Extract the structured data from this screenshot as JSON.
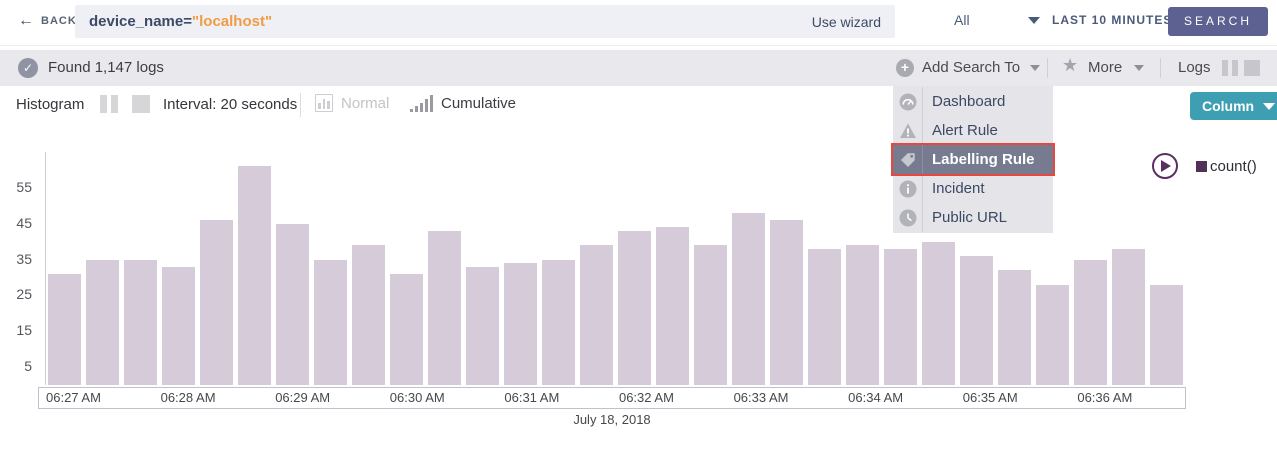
{
  "topbar": {
    "back_label": "BACK",
    "query_field": "device_name=",
    "query_value": "\"localhost\"",
    "use_wizard_label": "Use wizard",
    "scope_selected": "All",
    "time_range": "LAST 10 MINUTES",
    "search_label": "SEARCH"
  },
  "statusbar": {
    "found_text": "Found 1,147 logs",
    "add_search_to_label": "Add Search To",
    "more_label": "More",
    "logs_label": "Logs"
  },
  "menu": {
    "items": [
      {
        "label": "Dashboard",
        "icon": "dashboard-icon",
        "selected": false
      },
      {
        "label": "Alert Rule",
        "icon": "alert-triangle-icon",
        "selected": false
      },
      {
        "label": "Labelling Rule",
        "icon": "tag-icon",
        "selected": true
      },
      {
        "label": "Incident",
        "icon": "info-icon",
        "selected": false
      },
      {
        "label": "Public URL",
        "icon": "public-url-icon",
        "selected": false
      }
    ]
  },
  "controls": {
    "histogram_label": "Histogram",
    "interval_label": "Interval: 20 seconds",
    "normal_label": "Normal",
    "cumulative_label": "Cumulative",
    "column_button_label": "Column"
  },
  "legend": {
    "series_label": "count()"
  },
  "chart_data": {
    "type": "bar",
    "title": "",
    "xlabel": "July 18, 2018",
    "ylabel": "",
    "series_name": "count()",
    "interval": "20 seconds",
    "x": [
      "06:27:00",
      "06:27:20",
      "06:27:40",
      "06:28:00",
      "06:28:20",
      "06:28:40",
      "06:29:00",
      "06:29:20",
      "06:29:40",
      "06:30:00",
      "06:30:20",
      "06:30:40",
      "06:31:00",
      "06:31:20",
      "06:31:40",
      "06:32:00",
      "06:32:20",
      "06:32:40",
      "06:33:00",
      "06:33:20",
      "06:33:40",
      "06:34:00",
      "06:34:20",
      "06:34:40",
      "06:35:00",
      "06:35:20",
      "06:35:40",
      "06:36:00",
      "06:36:20",
      "06:36:40"
    ],
    "values": [
      31,
      35,
      35,
      33,
      46,
      61,
      45,
      35,
      39,
      31,
      43,
      33,
      34,
      35,
      39,
      43,
      44,
      39,
      48,
      46,
      38,
      39,
      38,
      40,
      36,
      32,
      28,
      35,
      38,
      28
    ],
    "x_tick_labels": [
      "06:27 AM",
      "06:28 AM",
      "06:29 AM",
      "06:30 AM",
      "06:31 AM",
      "06:32 AM",
      "06:33 AM",
      "06:34 AM",
      "06:35 AM",
      "06:36 AM"
    ],
    "y_ticks": [
      5,
      15,
      25,
      35,
      45,
      55
    ],
    "ylim": [
      0,
      65
    ],
    "date_label": "July 18, 2018",
    "grid": false,
    "legend_position": "right"
  },
  "colors": {
    "accent_orange": "#f09c43",
    "navy_text": "#3d4a66",
    "search_button": "#5c6191",
    "column_button_teal": "#3f9fb2",
    "bar_fill": "#d5cbd9",
    "highlight_red": "#e8473e",
    "selected_item_bg": "#767b90",
    "legend_purple": "#533058"
  }
}
